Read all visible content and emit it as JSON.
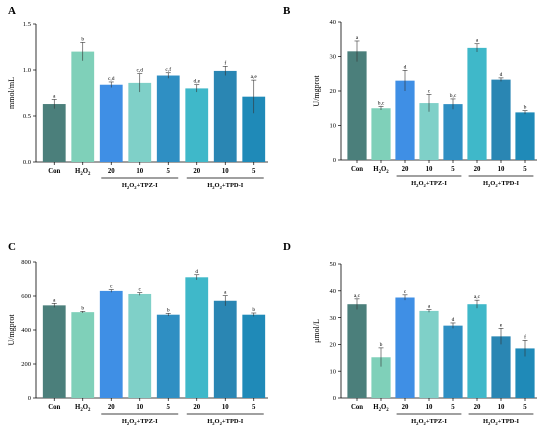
{
  "colors": [
    "#4b7f7b",
    "#7fd0b9",
    "#3f8fe5",
    "#7fd0c8",
    "#2f8fc3",
    "#3fb8c9",
    "#2a86b3",
    "#1f8ab8"
  ],
  "chart_data": [
    {
      "panel": "A",
      "type": "bar",
      "ylabel": "mmol/mL",
      "ylim": [
        0,
        1.5
      ],
      "yticks": [
        "0.0",
        "0.5",
        "1.0",
        "1.5"
      ],
      "categories": [
        "Con",
        "H2O2",
        "20",
        "10",
        "5",
        "20",
        "10",
        "5"
      ],
      "category_labels": [
        {
          "main": "Con",
          "sub": ""
        },
        {
          "main": "H",
          "sub": "2",
          "main2": "O",
          "sub2": "2"
        },
        {
          "main": "20"
        },
        {
          "main": "10"
        },
        {
          "main": "5"
        },
        {
          "main": "20"
        },
        {
          "main": "10"
        },
        {
          "main": "5"
        }
      ],
      "values": [
        0.63,
        1.2,
        0.84,
        0.86,
        0.94,
        0.8,
        0.99,
        0.71
      ],
      "errors": [
        0.05,
        0.1,
        0.03,
        0.1,
        0.03,
        0.04,
        0.05,
        0.18
      ],
      "significance": [
        "a",
        "b",
        "c,d",
        "c,d",
        "c,f",
        "d,e",
        "f",
        "a,e"
      ],
      "groups": [
        {
          "label": "H2O2+TPZ-I",
          "h": "H",
          "s1": "2",
          "o": "O",
          "s2": "2",
          "rest": "+TPZ-I",
          "from": 2,
          "to": 4
        },
        {
          "label": "H2O2+TPD-I",
          "h": "H",
          "s1": "2",
          "o": "O",
          "s2": "2",
          "rest": "+TPD-I",
          "from": 5,
          "to": 7
        }
      ]
    },
    {
      "panel": "B",
      "type": "bar",
      "ylabel": "U/mgprot",
      "ylim": [
        0,
        40
      ],
      "yticks": [
        "0",
        "10",
        "20",
        "30",
        "40"
      ],
      "categories": [
        "Con",
        "H2O2",
        "20",
        "10",
        "5",
        "20",
        "10",
        "5"
      ],
      "category_labels": [
        {
          "main": "Con",
          "sub": ""
        },
        {
          "main": "H",
          "sub": "2",
          "main2": "O",
          "sub2": "2"
        },
        {
          "main": "20"
        },
        {
          "main": "10"
        },
        {
          "main": "5"
        },
        {
          "main": "20"
        },
        {
          "main": "10"
        },
        {
          "main": "5"
        }
      ],
      "values": [
        31.5,
        15,
        23,
        16.5,
        16.2,
        32.5,
        23.3,
        13.8
      ],
      "errors": [
        3,
        0.5,
        3,
        2.5,
        1.5,
        1.2,
        0.5,
        0.5
      ],
      "significance": [
        "a",
        "b,c",
        "d",
        "c",
        "b,c",
        "a",
        "d",
        "b"
      ],
      "groups": [
        {
          "label": "H2O2+TPZ-I",
          "h": "H",
          "s1": "2",
          "o": "O",
          "s2": "2",
          "rest": "+TPZ-I",
          "from": 2,
          "to": 4
        },
        {
          "label": "H2O2+TPD-I",
          "h": "H",
          "s1": "2",
          "o": "O",
          "s2": "2",
          "rest": "+TPD-I",
          "from": 5,
          "to": 7
        }
      ]
    },
    {
      "panel": "C",
      "type": "bar",
      "ylabel": "U/mgprot",
      "ylim": [
        0,
        800
      ],
      "yticks": [
        "0",
        "200",
        "400",
        "600",
        "800"
      ],
      "categories": [
        "Con",
        "H2O2",
        "20",
        "10",
        "5",
        "20",
        "10",
        "5"
      ],
      "category_labels": [
        {
          "main": "Con",
          "sub": ""
        },
        {
          "main": "H",
          "sub": "2",
          "main2": "O",
          "sub2": "2"
        },
        {
          "main": "20"
        },
        {
          "main": "10"
        },
        {
          "main": "5"
        },
        {
          "main": "20"
        },
        {
          "main": "10"
        },
        {
          "main": "5"
        }
      ],
      "values": [
        545,
        505,
        630,
        612,
        490,
        710,
        572,
        490
      ],
      "errors": [
        12,
        5,
        8,
        8,
        8,
        15,
        30,
        10
      ],
      "significance": [
        "a",
        "b",
        "c",
        "c",
        "b",
        "d",
        "a",
        "b"
      ],
      "groups": [
        {
          "label": "H2O2+TPZ-I",
          "h": "H",
          "s1": "2",
          "o": "O",
          "s2": "2",
          "rest": "+TPZ-I",
          "from": 2,
          "to": 4
        },
        {
          "label": "H2O2+TPD-I",
          "h": "H",
          "s1": "2",
          "o": "O",
          "s2": "2",
          "rest": "+TPD-I",
          "from": 5,
          "to": 7
        }
      ]
    },
    {
      "panel": "D",
      "type": "bar",
      "ylabel": "μmol/L",
      "ylim": [
        0,
        50
      ],
      "yticks": [
        "0",
        "10",
        "20",
        "30",
        "40",
        "50"
      ],
      "categories": [
        "Con",
        "H2O2",
        "20",
        "10",
        "5",
        "20",
        "10",
        "5"
      ],
      "category_labels": [
        {
          "main": "Con",
          "sub": ""
        },
        {
          "main": "H",
          "sub": "2",
          "main2": "O",
          "sub2": "2"
        },
        {
          "main": "20"
        },
        {
          "main": "10"
        },
        {
          "main": "5"
        },
        {
          "main": "20"
        },
        {
          "main": "10"
        },
        {
          "main": "5"
        }
      ],
      "values": [
        35,
        15.2,
        37.5,
        32.5,
        27,
        35,
        23,
        18.5
      ],
      "errors": [
        2,
        3.5,
        1,
        0.5,
        1,
        1.5,
        3,
        3
      ],
      "significance": [
        "a,c",
        "b",
        "c",
        "a",
        "d",
        "a,c",
        "e",
        "f"
      ],
      "groups": [
        {
          "label": "H2O2+TPZ-I",
          "h": "H",
          "s1": "2",
          "o": "O",
          "s2": "2",
          "rest": "+TPZ-I",
          "from": 2,
          "to": 4
        },
        {
          "label": "H2O2+TPD-I",
          "h": "H",
          "s1": "2",
          "o": "O",
          "s2": "2",
          "rest": "+TPD-I",
          "from": 5,
          "to": 7
        }
      ]
    }
  ]
}
